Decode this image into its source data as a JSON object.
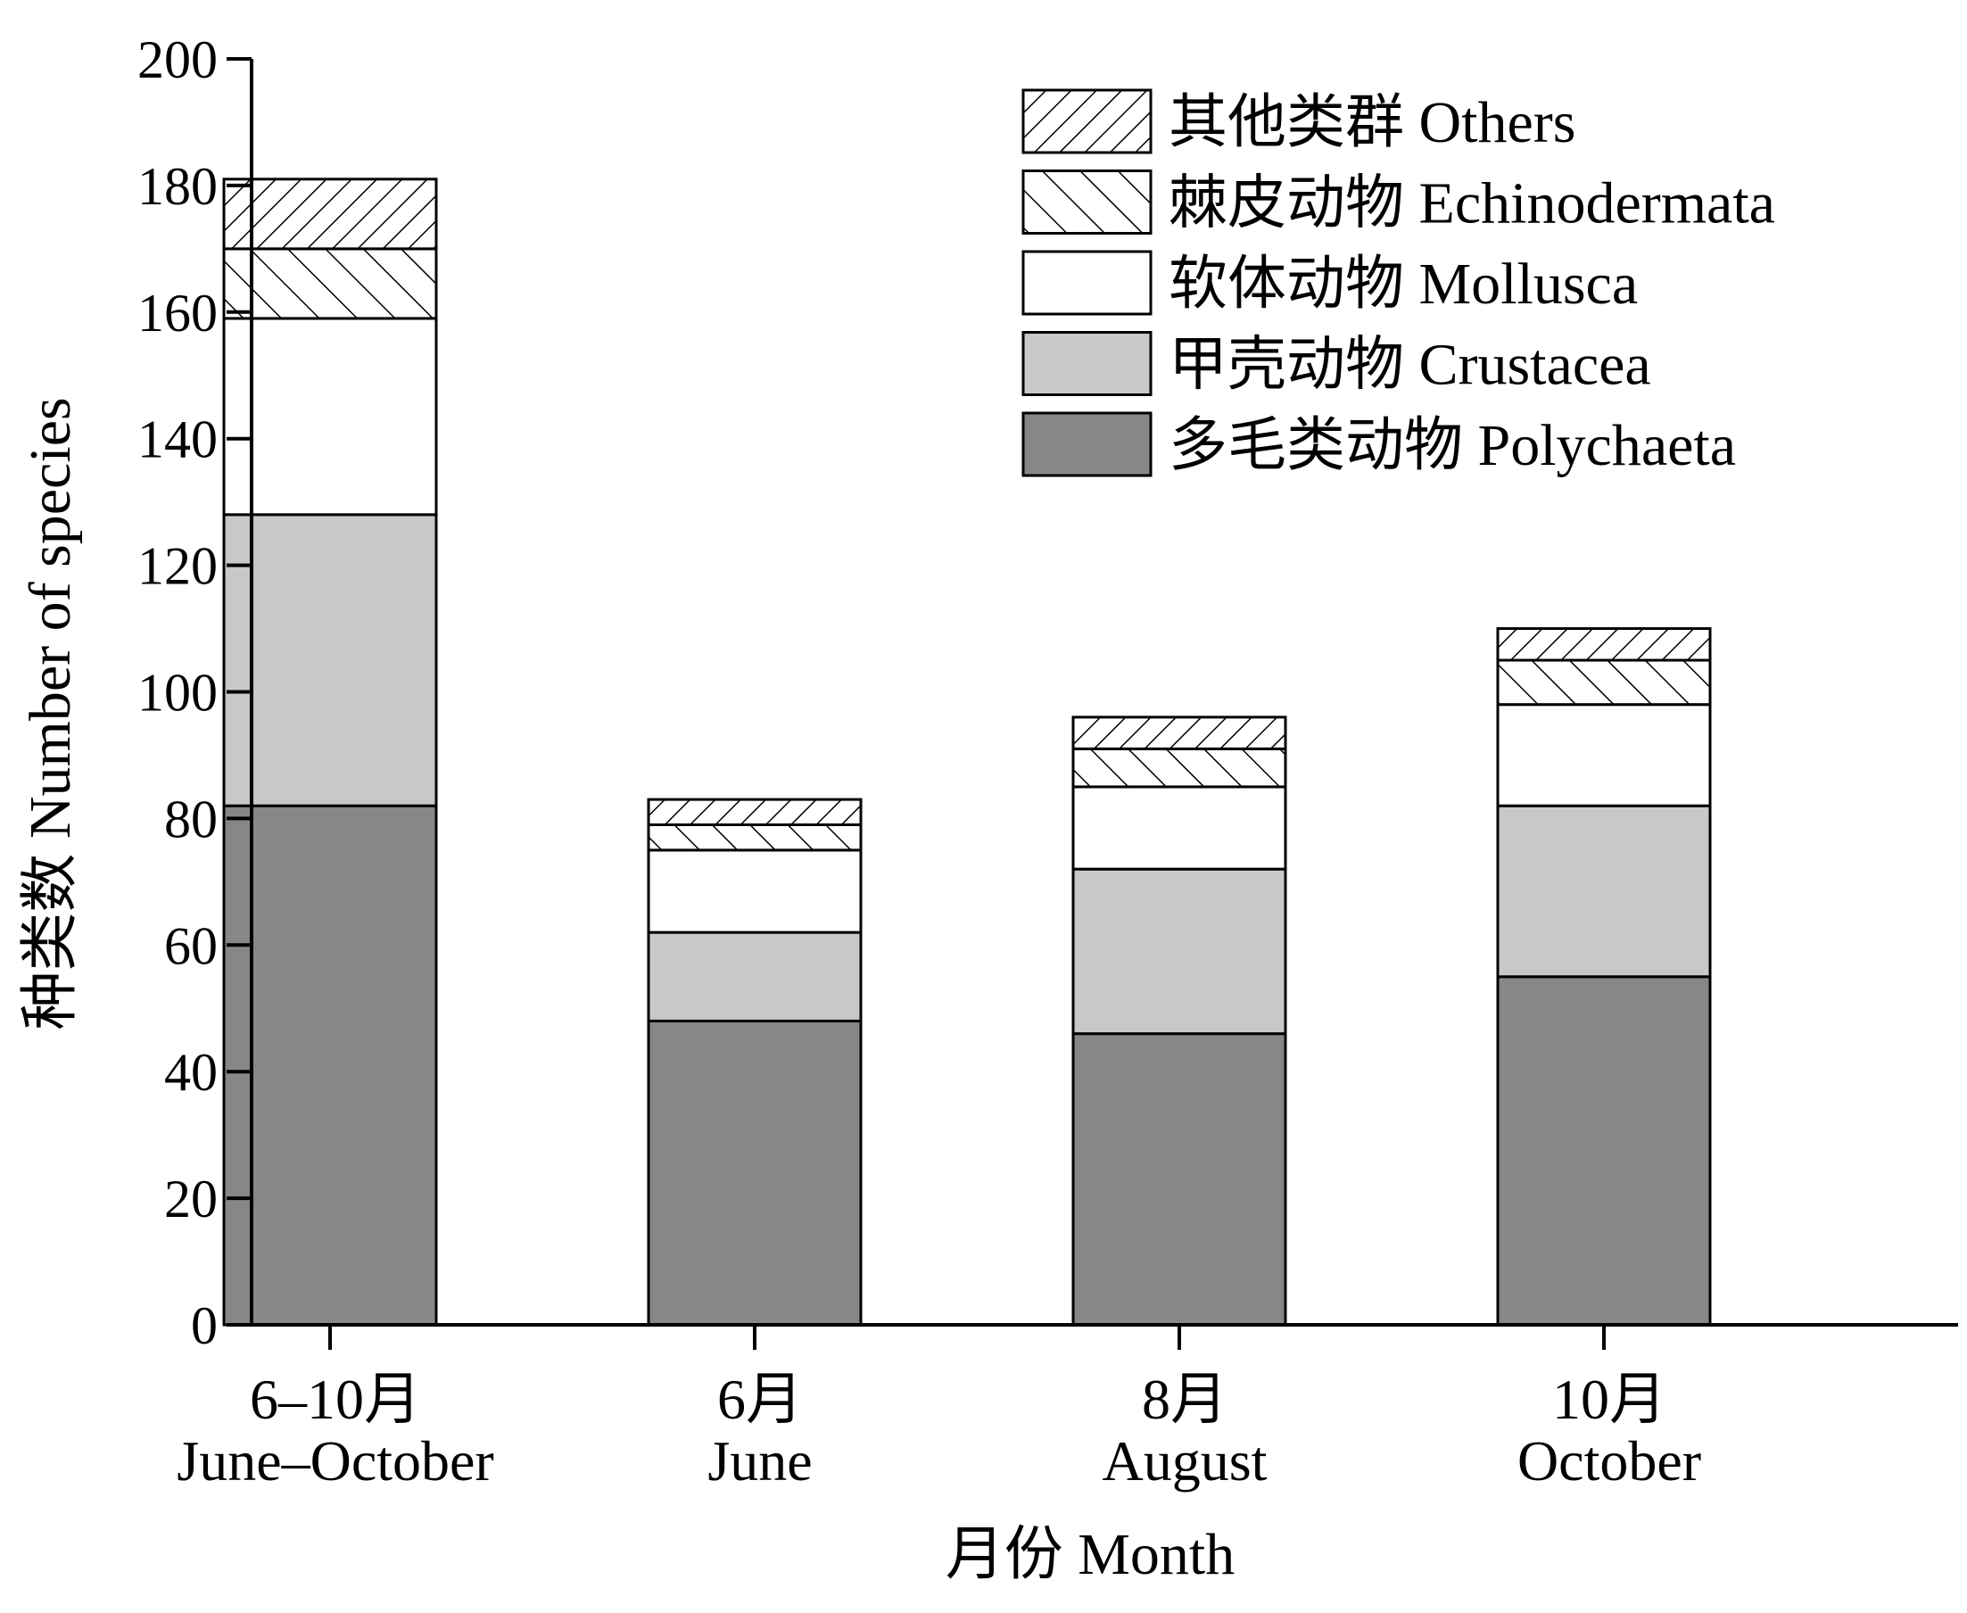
{
  "chart_data": {
    "type": "bar",
    "stacked": true,
    "categories": [
      {
        "zh": "6–10月",
        "en": "June–October"
      },
      {
        "zh": "6月",
        "en": "June"
      },
      {
        "zh": "8月",
        "en": "August"
      },
      {
        "zh": "10月",
        "en": "October"
      }
    ],
    "series": [
      {
        "name": "多毛类动物 Polychaeta",
        "values": [
          82,
          48,
          46,
          55
        ],
        "fill": "#878787",
        "pattern": "solid"
      },
      {
        "name": "甲壳动物 Crustacea",
        "values": [
          46,
          14,
          26,
          27
        ],
        "fill": "#c8c8c8",
        "pattern": "solid"
      },
      {
        "name": "软体动物 Mollusca",
        "values": [
          31,
          13,
          13,
          16
        ],
        "fill": "#ffffff",
        "pattern": "solid"
      },
      {
        "name": "棘皮动物 Echinodermata",
        "values": [
          11,
          4,
          6,
          7
        ],
        "fill": "#ffffff",
        "pattern": "backslash-hatch"
      },
      {
        "name": "其他类群 Others",
        "values": [
          11,
          4,
          5,
          5
        ],
        "fill": "#ffffff",
        "pattern": "slash-hatch"
      }
    ],
    "xlabel": "月份 Month",
    "ylabel": "种类数 Number of species",
    "ylim": [
      0,
      200
    ],
    "yticks": [
      0,
      20,
      40,
      60,
      80,
      100,
      120,
      140,
      160,
      180,
      200
    ],
    "legend_position": "top-right",
    "legend_order": [
      "其他类群 Others",
      "棘皮动物 Echinodermata",
      "软体动物 Mollusca",
      "甲壳动物 Crustacea",
      "多毛类动物 Polychaeta"
    ],
    "grid": false
  }
}
